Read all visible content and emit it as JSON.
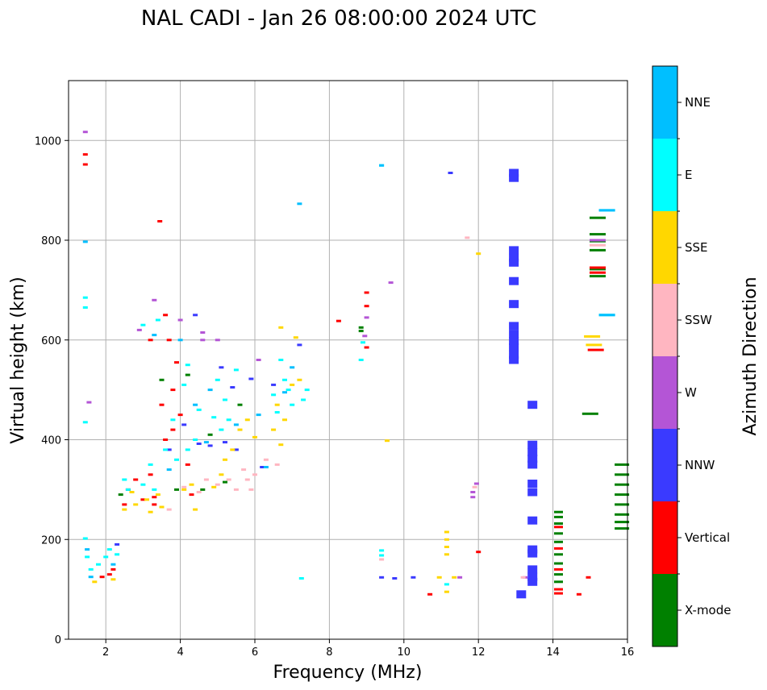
{
  "chart_data": {
    "type": "scatter",
    "title": "NAL CADI - Jan 26 08:00:00 2024 UTC",
    "xlabel": "Frequency (MHz)",
    "ylabel": "Virtual height (km)",
    "xlim": [
      1,
      16
    ],
    "ylim": [
      0,
      1120
    ],
    "xticks": [
      2,
      4,
      6,
      8,
      10,
      12,
      14,
      16
    ],
    "yticks": [
      0,
      200,
      400,
      600,
      800,
      1000
    ],
    "grid": true,
    "colorbar": {
      "label": "Azimuth Direction",
      "categories": [
        "X-mode",
        "Vertical",
        "NNW",
        "W",
        "SSW",
        "SSE",
        "E",
        "NNE"
      ],
      "colors": [
        "#008000",
        "#ff0000",
        "#3a3aff",
        "#b455d6",
        "#ffb6c1",
        "#ffd700",
        "#00ffff",
        "#00bfff"
      ]
    },
    "series": [
      {
        "name": "NNW",
        "points": [
          [
            12.95,
            935
          ],
          [
            12.95,
            925
          ],
          [
            12.95,
            780
          ],
          [
            12.95,
            765
          ],
          [
            12.95,
            755
          ],
          [
            12.95,
            718
          ],
          [
            12.95,
            672
          ],
          [
            12.95,
            628
          ],
          [
            12.95,
            612
          ],
          [
            12.95,
            598
          ],
          [
            12.95,
            585
          ],
          [
            12.95,
            570
          ],
          [
            12.95,
            560
          ],
          [
            13.45,
            470
          ],
          [
            13.45,
            390
          ],
          [
            13.45,
            375
          ],
          [
            13.45,
            362
          ],
          [
            13.45,
            350
          ],
          [
            13.45,
            312
          ],
          [
            13.45,
            295
          ],
          [
            13.45,
            238
          ],
          [
            13.45,
            180
          ],
          [
            13.45,
            172
          ],
          [
            13.45,
            140
          ],
          [
            13.45,
            125
          ],
          [
            13.45,
            115
          ],
          [
            13.15,
            90
          ],
          [
            9.4,
            124
          ],
          [
            10.25,
            124
          ],
          [
            9.75,
            122
          ],
          [
            11.25,
            935
          ],
          [
            4.5,
            392
          ],
          [
            4.8,
            388
          ],
          [
            5.2,
            395
          ],
          [
            5.5,
            380
          ],
          [
            5.9,
            522
          ],
          [
            6.2,
            345
          ],
          [
            7.2,
            590
          ],
          [
            5.1,
            545
          ],
          [
            5.4,
            505
          ],
          [
            3.7,
            380
          ],
          [
            4.1,
            430
          ],
          [
            4.4,
            650
          ],
          [
            2.3,
            190
          ],
          [
            6.5,
            510
          ]
        ]
      },
      {
        "name": "X-mode",
        "points": [
          [
            15.85,
            350
          ],
          [
            15.85,
            330
          ],
          [
            15.85,
            310
          ],
          [
            15.85,
            290
          ],
          [
            15.85,
            270
          ],
          [
            15.85,
            250
          ],
          [
            15.85,
            235
          ],
          [
            15.85,
            222
          ],
          [
            14.15,
            255
          ],
          [
            14.15,
            245
          ],
          [
            14.15,
            232
          ],
          [
            14.15,
            212
          ],
          [
            14.15,
            195
          ],
          [
            14.15,
            170
          ],
          [
            14.15,
            152
          ],
          [
            14.15,
            130
          ],
          [
            14.15,
            115
          ],
          [
            15.2,
            845
          ],
          [
            15.2,
            812
          ],
          [
            15.2,
            798
          ],
          [
            15.2,
            780
          ],
          [
            15.2,
            742
          ],
          [
            15.2,
            728
          ],
          [
            15.0,
            452
          ],
          [
            8.85,
            625
          ],
          [
            8.85,
            618
          ],
          [
            4.6,
            300
          ],
          [
            5.2,
            315
          ],
          [
            3.5,
            520
          ],
          [
            4.8,
            410
          ],
          [
            5.6,
            470
          ],
          [
            2.4,
            290
          ],
          [
            4.2,
            530
          ],
          [
            3.9,
            300
          ]
        ]
      },
      {
        "name": "Vertical",
        "points": [
          [
            14.15,
            225
          ],
          [
            14.15,
            182
          ],
          [
            14.15,
            140
          ],
          [
            14.15,
            100
          ],
          [
            14.15,
            92
          ],
          [
            15.15,
            580
          ],
          [
            15.2,
            745
          ],
          [
            15.2,
            735
          ],
          [
            14.95,
            124
          ],
          [
            14.7,
            90
          ],
          [
            12.0,
            175
          ],
          [
            10.7,
            90
          ],
          [
            9.0,
            695
          ],
          [
            9.0,
            668
          ],
          [
            9.0,
            585
          ],
          [
            8.25,
            638
          ],
          [
            3.45,
            838
          ],
          [
            1.45,
            972
          ],
          [
            1.45,
            952
          ],
          [
            2.1,
            130
          ],
          [
            2.2,
            140
          ],
          [
            1.9,
            125
          ],
          [
            2.5,
            270
          ],
          [
            2.6,
            300
          ],
          [
            3.0,
            280
          ],
          [
            3.2,
            330
          ],
          [
            3.3,
            285
          ],
          [
            3.6,
            400
          ],
          [
            3.8,
            420
          ],
          [
            3.9,
            555
          ],
          [
            3.7,
            600
          ],
          [
            4.0,
            450
          ],
          [
            4.2,
            350
          ],
          [
            3.5,
            470
          ],
          [
            3.2,
            600
          ],
          [
            4.3,
            290
          ],
          [
            3.6,
            650
          ],
          [
            3.8,
            500
          ],
          [
            3.3,
            270
          ],
          [
            2.8,
            320
          ]
        ]
      },
      {
        "name": "W",
        "points": [
          [
            15.2,
            800
          ],
          [
            8.95,
            608
          ],
          [
            9.0,
            645
          ],
          [
            9.65,
            715
          ],
          [
            11.95,
            312
          ],
          [
            11.85,
            295
          ],
          [
            11.85,
            285
          ],
          [
            11.5,
            124
          ],
          [
            13.25,
            124
          ],
          [
            4.6,
            615
          ],
          [
            4.6,
            600
          ],
          [
            1.45,
            1017
          ],
          [
            3.3,
            680
          ],
          [
            6.1,
            560
          ],
          [
            2.9,
            620
          ],
          [
            5.0,
            600
          ],
          [
            4.0,
            640
          ],
          [
            1.55,
            475
          ]
        ]
      },
      {
        "name": "SSW",
        "points": [
          [
            11.7,
            805
          ],
          [
            9.4,
            160
          ],
          [
            5.8,
            320
          ],
          [
            6.0,
            330
          ],
          [
            5.5,
            300
          ],
          [
            5.3,
            320
          ],
          [
            5.0,
            310
          ],
          [
            4.7,
            320
          ],
          [
            6.6,
            350
          ],
          [
            5.9,
            300
          ],
          [
            3.7,
            260
          ],
          [
            4.5,
            295
          ],
          [
            5.7,
            340
          ],
          [
            6.3,
            360
          ],
          [
            11.9,
            305
          ],
          [
            15.2,
            790
          ],
          [
            13.2,
            124
          ],
          [
            4.1,
            305
          ]
        ]
      },
      {
        "name": "SSE",
        "points": [
          [
            15.05,
            607
          ],
          [
            15.1,
            590
          ],
          [
            11.15,
            215
          ],
          [
            11.15,
            200
          ],
          [
            11.15,
            185
          ],
          [
            11.15,
            170
          ],
          [
            11.15,
            95
          ],
          [
            11.35,
            124
          ],
          [
            10.95,
            124
          ],
          [
            12.0,
            773
          ],
          [
            9.55,
            398
          ],
          [
            2.2,
            120
          ],
          [
            1.7,
            115
          ],
          [
            2.5,
            260
          ],
          [
            2.8,
            270
          ],
          [
            3.1,
            280
          ],
          [
            3.2,
            255
          ],
          [
            3.4,
            290
          ],
          [
            4.1,
            300
          ],
          [
            4.3,
            310
          ],
          [
            4.9,
            305
          ],
          [
            5.1,
            330
          ],
          [
            5.2,
            360
          ],
          [
            5.6,
            420
          ],
          [
            5.4,
            380
          ],
          [
            6.0,
            405
          ],
          [
            6.5,
            420
          ],
          [
            6.6,
            470
          ],
          [
            6.7,
            390
          ],
          [
            6.8,
            440
          ],
          [
            7.0,
            510
          ],
          [
            7.2,
            520
          ],
          [
            7.1,
            605
          ],
          [
            6.7,
            625
          ],
          [
            5.8,
            440
          ],
          [
            4.4,
            260
          ],
          [
            2.7,
            295
          ],
          [
            3.5,
            265
          ]
        ]
      },
      {
        "name": "E",
        "points": [
          [
            15.45,
            860
          ],
          [
            15.45,
            650
          ],
          [
            9.4,
            950
          ],
          [
            9.4,
            178
          ],
          [
            9.4,
            168
          ],
          [
            11.15,
            110
          ],
          [
            7.25,
            122
          ],
          [
            1.45,
            665
          ],
          [
            1.45,
            685
          ],
          [
            1.45,
            435
          ],
          [
            1.45,
            202
          ],
          [
            1.5,
            165
          ],
          [
            1.6,
            140
          ],
          [
            1.8,
            150
          ],
          [
            2.1,
            180
          ],
          [
            2.0,
            165
          ],
          [
            2.3,
            170
          ],
          [
            2.6,
            300
          ],
          [
            3.0,
            310
          ],
          [
            3.2,
            350
          ],
          [
            3.3,
            300
          ],
          [
            3.4,
            640
          ],
          [
            3.6,
            380
          ],
          [
            3.8,
            440
          ],
          [
            4.2,
            380
          ],
          [
            4.4,
            400
          ],
          [
            4.2,
            550
          ],
          [
            4.1,
            510
          ],
          [
            4.5,
            460
          ],
          [
            5.0,
            520
          ],
          [
            5.2,
            480
          ],
          [
            5.3,
            440
          ],
          [
            5.5,
            540
          ],
          [
            6.5,
            490
          ],
          [
            6.7,
            560
          ],
          [
            6.9,
            500
          ],
          [
            7.0,
            470
          ],
          [
            7.3,
            480
          ],
          [
            7.4,
            500
          ],
          [
            6.6,
            455
          ],
          [
            8.9,
            595
          ],
          [
            8.85,
            560
          ],
          [
            3.9,
            360
          ],
          [
            5.1,
            420
          ],
          [
            4.9,
            445
          ],
          [
            6.8,
            520
          ],
          [
            3.0,
            630
          ],
          [
            2.5,
            320
          ]
        ]
      },
      {
        "name": "NNE",
        "points": [
          [
            15.45,
            860
          ],
          [
            15.45,
            650
          ],
          [
            9.4,
            950
          ],
          [
            1.45,
            797
          ],
          [
            1.5,
            180
          ],
          [
            1.6,
            125
          ],
          [
            7.2,
            873
          ],
          [
            2.2,
            150
          ],
          [
            3.3,
            610
          ],
          [
            4.4,
            470
          ],
          [
            4.7,
            395
          ],
          [
            5.5,
            430
          ],
          [
            6.1,
            450
          ],
          [
            6.3,
            345
          ],
          [
            6.8,
            495
          ],
          [
            7.0,
            545
          ],
          [
            3.7,
            340
          ],
          [
            4.0,
            600
          ],
          [
            4.8,
            500
          ]
        ]
      }
    ]
  }
}
